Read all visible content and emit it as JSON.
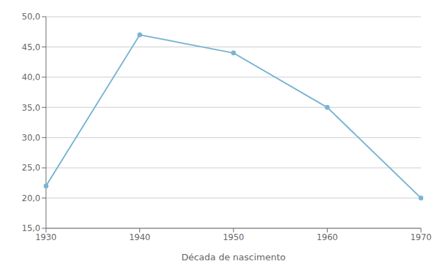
{
  "chart_data": {
    "type": "line",
    "xlabel": "Década de nascimento",
    "x": [
      1930,
      1940,
      1950,
      1960,
      1970
    ],
    "values": [
      22.0,
      47.0,
      44.0,
      35.0,
      20.0
    ],
    "color": "#7ab3d4",
    "marker": "circle",
    "xlim": [
      1930,
      1970
    ],
    "ylim": [
      15.0,
      50.0
    ],
    "xticks": [
      1930,
      1940,
      1950,
      1960,
      1970
    ],
    "yticks": [
      {
        "value": 15.0,
        "label": "15,0"
      },
      {
        "value": 20.0,
        "label": "20,0"
      },
      {
        "value": 25.0,
        "label": "25,0"
      },
      {
        "value": 30.0,
        "label": "30,0"
      },
      {
        "value": 35.0,
        "label": "35,0"
      },
      {
        "value": 40.0,
        "label": "40,0"
      },
      {
        "value": 45.0,
        "label": "45,0"
      },
      {
        "value": 50.0,
        "label": "50,0"
      }
    ],
    "grid": "y"
  }
}
